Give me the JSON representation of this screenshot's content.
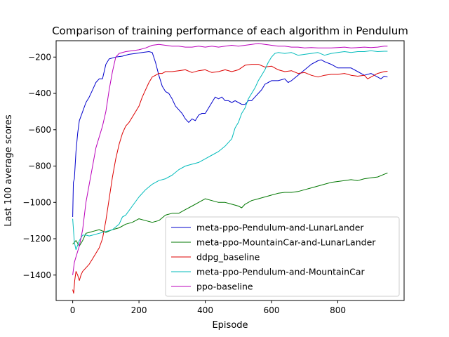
{
  "chart_data": {
    "type": "line",
    "title": "Comparison of training performance of each algorithm in Pendulum",
    "xlabel": "Episode",
    "ylabel": "Last 100 average scores",
    "xlim": [
      -50,
      1000
    ],
    "ylim": [
      -1540,
      -110
    ],
    "x_ticks": [
      0,
      200,
      400,
      600,
      800
    ],
    "y_ticks": [
      -1400,
      -1200,
      -1000,
      -800,
      -600,
      -400,
      -200
    ],
    "grid": false,
    "legend_position": "lower-right",
    "series": [
      {
        "name": "meta-ppo-Pendulum-and-LunarLander",
        "color": "#0000cc",
        "points": [
          [
            0,
            -1080
          ],
          [
            2,
            -890
          ],
          [
            5,
            -870
          ],
          [
            10,
            -720
          ],
          [
            15,
            -620
          ],
          [
            20,
            -550
          ],
          [
            30,
            -500
          ],
          [
            40,
            -450
          ],
          [
            50,
            -420
          ],
          [
            60,
            -380
          ],
          [
            70,
            -340
          ],
          [
            80,
            -320
          ],
          [
            90,
            -320
          ],
          [
            100,
            -240
          ],
          [
            110,
            -210
          ],
          [
            130,
            -200
          ],
          [
            150,
            -195
          ],
          [
            170,
            -185
          ],
          [
            190,
            -180
          ],
          [
            210,
            -175
          ],
          [
            230,
            -170
          ],
          [
            240,
            -175
          ],
          [
            250,
            -230
          ],
          [
            260,
            -300
          ],
          [
            270,
            -360
          ],
          [
            280,
            -390
          ],
          [
            290,
            -400
          ],
          [
            300,
            -430
          ],
          [
            310,
            -470
          ],
          [
            320,
            -490
          ],
          [
            330,
            -510
          ],
          [
            340,
            -540
          ],
          [
            350,
            -560
          ],
          [
            360,
            -540
          ],
          [
            370,
            -550
          ],
          [
            380,
            -520
          ],
          [
            390,
            -510
          ],
          [
            400,
            -510
          ],
          [
            410,
            -480
          ],
          [
            420,
            -450
          ],
          [
            430,
            -420
          ],
          [
            440,
            -430
          ],
          [
            450,
            -420
          ],
          [
            460,
            -440
          ],
          [
            470,
            -440
          ],
          [
            480,
            -450
          ],
          [
            490,
            -440
          ],
          [
            500,
            -450
          ],
          [
            510,
            -460
          ],
          [
            520,
            -460
          ],
          [
            530,
            -440
          ],
          [
            540,
            -440
          ],
          [
            550,
            -420
          ],
          [
            560,
            -400
          ],
          [
            570,
            -380
          ],
          [
            580,
            -350
          ],
          [
            590,
            -340
          ],
          [
            600,
            -330
          ],
          [
            620,
            -330
          ],
          [
            640,
            -320
          ],
          [
            650,
            -340
          ],
          [
            660,
            -330
          ],
          [
            680,
            -300
          ],
          [
            700,
            -270
          ],
          [
            720,
            -240
          ],
          [
            740,
            -220
          ],
          [
            750,
            -215
          ],
          [
            760,
            -225
          ],
          [
            780,
            -240
          ],
          [
            800,
            -260
          ],
          [
            820,
            -260
          ],
          [
            840,
            -260
          ],
          [
            860,
            -280
          ],
          [
            880,
            -300
          ],
          [
            900,
            -290
          ],
          [
            920,
            -310
          ],
          [
            930,
            -320
          ],
          [
            940,
            -305
          ],
          [
            950,
            -310
          ]
        ]
      },
      {
        "name": "meta-ppo-MountainCar-and-LunarLander",
        "color": "#007700",
        "points": [
          [
            0,
            -1230
          ],
          [
            10,
            -1210
          ],
          [
            20,
            -1240
          ],
          [
            30,
            -1210
          ],
          [
            40,
            -1170
          ],
          [
            60,
            -1160
          ],
          [
            80,
            -1150
          ],
          [
            100,
            -1165
          ],
          [
            120,
            -1150
          ],
          [
            140,
            -1140
          ],
          [
            160,
            -1120
          ],
          [
            180,
            -1110
          ],
          [
            200,
            -1090
          ],
          [
            220,
            -1100
          ],
          [
            240,
            -1110
          ],
          [
            260,
            -1100
          ],
          [
            280,
            -1070
          ],
          [
            300,
            -1060
          ],
          [
            320,
            -1060
          ],
          [
            340,
            -1040
          ],
          [
            360,
            -1020
          ],
          [
            380,
            -1000
          ],
          [
            400,
            -980
          ],
          [
            420,
            -990
          ],
          [
            440,
            -1000
          ],
          [
            460,
            -1000
          ],
          [
            480,
            -1010
          ],
          [
            500,
            -1020
          ],
          [
            510,
            -1030
          ],
          [
            520,
            -1010
          ],
          [
            540,
            -990
          ],
          [
            560,
            -980
          ],
          [
            580,
            -970
          ],
          [
            600,
            -960
          ],
          [
            620,
            -950
          ],
          [
            640,
            -945
          ],
          [
            660,
            -945
          ],
          [
            680,
            -940
          ],
          [
            700,
            -930
          ],
          [
            720,
            -920
          ],
          [
            740,
            -910
          ],
          [
            760,
            -900
          ],
          [
            780,
            -890
          ],
          [
            800,
            -885
          ],
          [
            820,
            -880
          ],
          [
            840,
            -875
          ],
          [
            860,
            -880
          ],
          [
            880,
            -870
          ],
          [
            900,
            -865
          ],
          [
            920,
            -860
          ],
          [
            940,
            -845
          ],
          [
            950,
            -838
          ]
        ]
      },
      {
        "name": "ddpg_baseline",
        "color": "#dd0000",
        "points": [
          [
            0,
            -1480
          ],
          [
            3,
            -1500
          ],
          [
            6,
            -1430
          ],
          [
            10,
            -1380
          ],
          [
            15,
            -1400
          ],
          [
            20,
            -1430
          ],
          [
            25,
            -1400
          ],
          [
            30,
            -1380
          ],
          [
            40,
            -1360
          ],
          [
            50,
            -1340
          ],
          [
            60,
            -1310
          ],
          [
            70,
            -1280
          ],
          [
            80,
            -1250
          ],
          [
            90,
            -1200
          ],
          [
            100,
            -1100
          ],
          [
            110,
            -980
          ],
          [
            120,
            -860
          ],
          [
            130,
            -760
          ],
          [
            140,
            -680
          ],
          [
            150,
            -620
          ],
          [
            160,
            -580
          ],
          [
            170,
            -560
          ],
          [
            180,
            -530
          ],
          [
            190,
            -500
          ],
          [
            200,
            -470
          ],
          [
            210,
            -420
          ],
          [
            220,
            -380
          ],
          [
            230,
            -340
          ],
          [
            240,
            -310
          ],
          [
            250,
            -300
          ],
          [
            260,
            -290
          ],
          [
            270,
            -290
          ],
          [
            280,
            -280
          ],
          [
            300,
            -280
          ],
          [
            320,
            -275
          ],
          [
            340,
            -270
          ],
          [
            360,
            -285
          ],
          [
            380,
            -275
          ],
          [
            400,
            -270
          ],
          [
            420,
            -285
          ],
          [
            440,
            -280
          ],
          [
            460,
            -270
          ],
          [
            480,
            -280
          ],
          [
            500,
            -270
          ],
          [
            520,
            -245
          ],
          [
            540,
            -240
          ],
          [
            560,
            -240
          ],
          [
            580,
            -255
          ],
          [
            600,
            -250
          ],
          [
            620,
            -270
          ],
          [
            640,
            -280
          ],
          [
            660,
            -275
          ],
          [
            680,
            -290
          ],
          [
            700,
            -285
          ],
          [
            720,
            -300
          ],
          [
            740,
            -310
          ],
          [
            760,
            -300
          ],
          [
            780,
            -295
          ],
          [
            800,
            -295
          ],
          [
            820,
            -290
          ],
          [
            840,
            -300
          ],
          [
            860,
            -305
          ],
          [
            880,
            -300
          ],
          [
            890,
            -320
          ],
          [
            900,
            -310
          ],
          [
            920,
            -290
          ],
          [
            940,
            -280
          ],
          [
            950,
            -278
          ]
        ]
      },
      {
        "name": "meta-ppo-Pendulum-and-MountainCar",
        "color": "#00bbbb",
        "points": [
          [
            0,
            -1090
          ],
          [
            5,
            -1220
          ],
          [
            10,
            -1260
          ],
          [
            20,
            -1210
          ],
          [
            30,
            -1180
          ],
          [
            40,
            -1180
          ],
          [
            50,
            -1185
          ],
          [
            60,
            -1180
          ],
          [
            80,
            -1170
          ],
          [
            100,
            -1160
          ],
          [
            120,
            -1150
          ],
          [
            140,
            -1120
          ],
          [
            150,
            -1080
          ],
          [
            160,
            -1070
          ],
          [
            180,
            -1020
          ],
          [
            200,
            -970
          ],
          [
            220,
            -930
          ],
          [
            240,
            -900
          ],
          [
            260,
            -880
          ],
          [
            280,
            -870
          ],
          [
            300,
            -850
          ],
          [
            320,
            -820
          ],
          [
            340,
            -800
          ],
          [
            360,
            -790
          ],
          [
            380,
            -780
          ],
          [
            400,
            -760
          ],
          [
            420,
            -740
          ],
          [
            440,
            -720
          ],
          [
            460,
            -690
          ],
          [
            480,
            -650
          ],
          [
            490,
            -590
          ],
          [
            500,
            -560
          ],
          [
            510,
            -510
          ],
          [
            520,
            -480
          ],
          [
            530,
            -430
          ],
          [
            540,
            -400
          ],
          [
            550,
            -370
          ],
          [
            560,
            -330
          ],
          [
            570,
            -300
          ],
          [
            580,
            -270
          ],
          [
            590,
            -230
          ],
          [
            600,
            -200
          ],
          [
            610,
            -180
          ],
          [
            620,
            -175
          ],
          [
            640,
            -180
          ],
          [
            660,
            -175
          ],
          [
            680,
            -190
          ],
          [
            700,
            -185
          ],
          [
            720,
            -180
          ],
          [
            740,
            -175
          ],
          [
            760,
            -190
          ],
          [
            780,
            -180
          ],
          [
            800,
            -175
          ],
          [
            820,
            -170
          ],
          [
            840,
            -175
          ],
          [
            860,
            -170
          ],
          [
            880,
            -170
          ],
          [
            900,
            -165
          ],
          [
            920,
            -170
          ],
          [
            940,
            -168
          ],
          [
            950,
            -168
          ]
        ]
      },
      {
        "name": "ppo-baseline",
        "color": "#bb00bb",
        "points": [
          [
            0,
            -1400
          ],
          [
            5,
            -1330
          ],
          [
            10,
            -1300
          ],
          [
            20,
            -1240
          ],
          [
            30,
            -1150
          ],
          [
            40,
            -1000
          ],
          [
            50,
            -900
          ],
          [
            60,
            -800
          ],
          [
            70,
            -700
          ],
          [
            80,
            -640
          ],
          [
            90,
            -580
          ],
          [
            100,
            -500
          ],
          [
            110,
            -380
          ],
          [
            120,
            -280
          ],
          [
            130,
            -200
          ],
          [
            140,
            -180
          ],
          [
            160,
            -170
          ],
          [
            180,
            -165
          ],
          [
            200,
            -160
          ],
          [
            220,
            -150
          ],
          [
            240,
            -135
          ],
          [
            260,
            -130
          ],
          [
            280,
            -135
          ],
          [
            300,
            -140
          ],
          [
            320,
            -140
          ],
          [
            340,
            -145
          ],
          [
            360,
            -145
          ],
          [
            380,
            -140
          ],
          [
            400,
            -145
          ],
          [
            420,
            -140
          ],
          [
            440,
            -145
          ],
          [
            460,
            -140
          ],
          [
            480,
            -135
          ],
          [
            500,
            -140
          ],
          [
            520,
            -135
          ],
          [
            540,
            -130
          ],
          [
            560,
            -125
          ],
          [
            580,
            -130
          ],
          [
            600,
            -135
          ],
          [
            620,
            -140
          ],
          [
            640,
            -140
          ],
          [
            660,
            -145
          ],
          [
            680,
            -145
          ],
          [
            700,
            -150
          ],
          [
            720,
            -148
          ],
          [
            740,
            -150
          ],
          [
            760,
            -150
          ],
          [
            780,
            -150
          ],
          [
            800,
            -148
          ],
          [
            820,
            -145
          ],
          [
            840,
            -150
          ],
          [
            860,
            -148
          ],
          [
            880,
            -145
          ],
          [
            900,
            -148
          ],
          [
            920,
            -145
          ],
          [
            940,
            -140
          ],
          [
            950,
            -140
          ]
        ]
      }
    ]
  }
}
